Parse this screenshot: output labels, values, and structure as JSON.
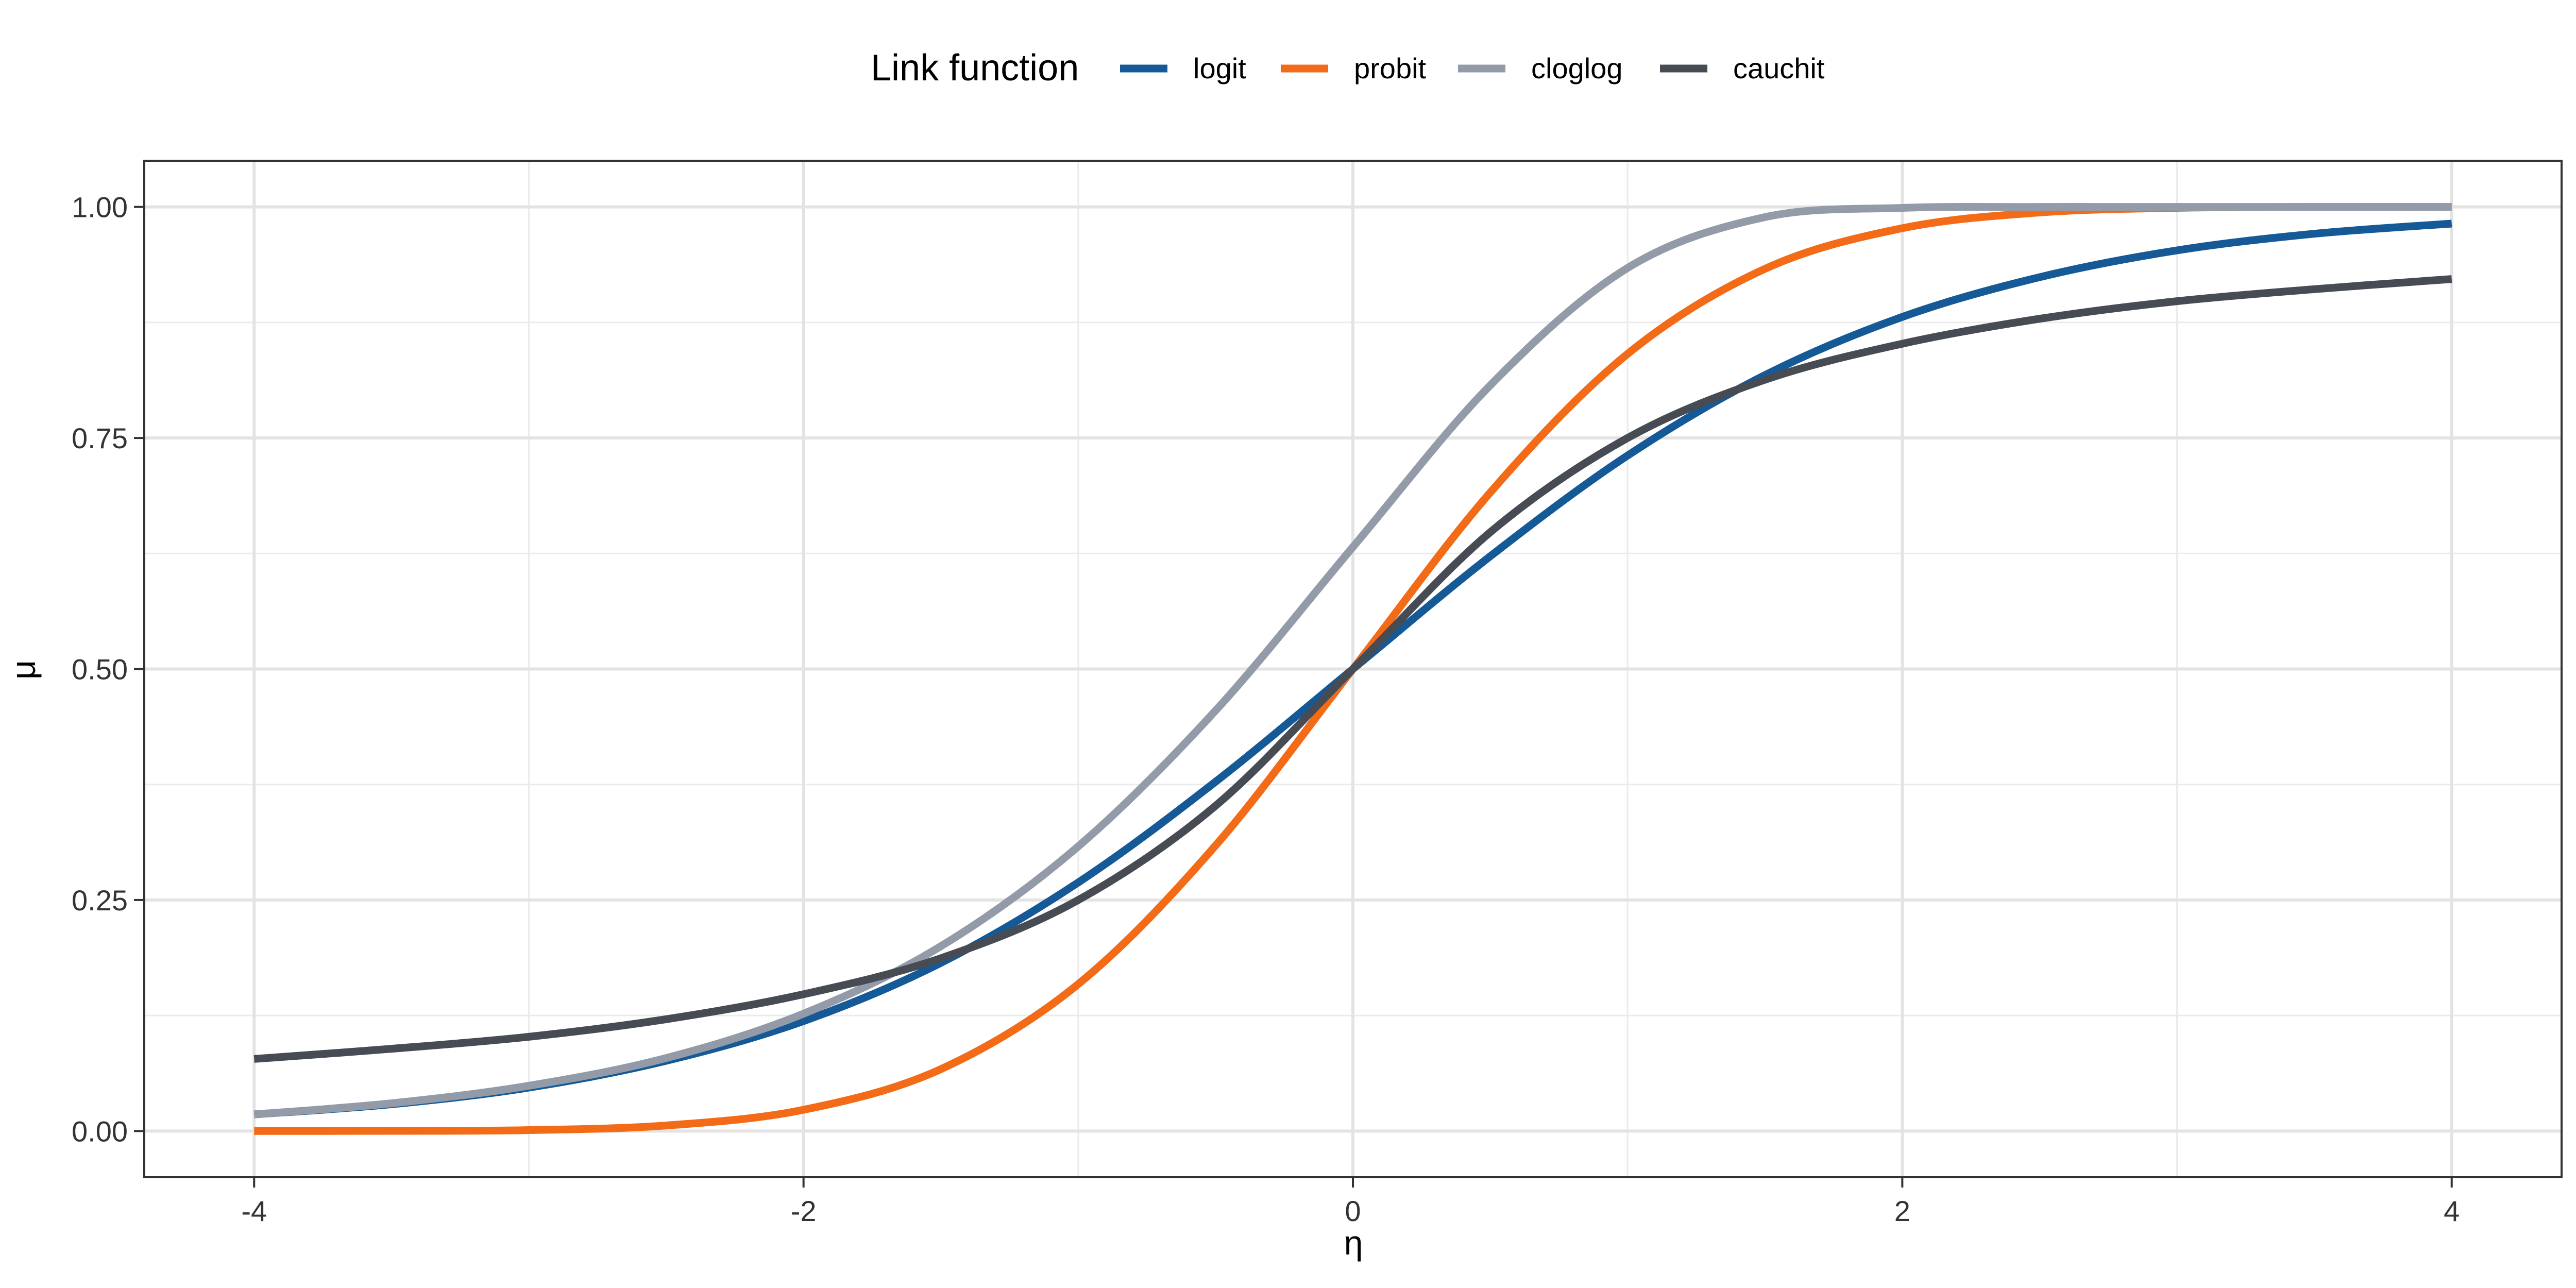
{
  "chart_data": {
    "type": "line",
    "title": "",
    "xlabel": "η",
    "ylabel": "μ",
    "xlim": [
      -4.4,
      4.4
    ],
    "ylim": [
      -0.05,
      1.05
    ],
    "x_ticks": [
      -4,
      -2,
      0,
      2,
      4
    ],
    "x_tick_labels": [
      "-4",
      "-2",
      "0",
      "2",
      "4"
    ],
    "y_ticks": [
      0,
      0.25,
      0.5,
      0.75,
      1
    ],
    "y_tick_labels": [
      "0.00",
      "0.25",
      "0.50",
      "0.75",
      "1.00"
    ],
    "grid": true,
    "legend": {
      "title": "Link function",
      "placement": "top-center",
      "entries": [
        "logit",
        "probit",
        "cloglog",
        "cauchit"
      ]
    },
    "x": [
      -4,
      -3.5,
      -3,
      -2.5,
      -2,
      -1.5,
      -1,
      -0.5,
      0,
      0.5,
      1,
      1.5,
      2,
      2.5,
      3,
      3.5,
      4
    ],
    "series": [
      {
        "name": "logit",
        "color": "#155a96",
        "values": [
          0.018,
          0.029,
          0.047,
          0.076,
          0.119,
          0.182,
          0.269,
          0.378,
          0.5,
          0.622,
          0.731,
          0.818,
          0.881,
          0.924,
          0.953,
          0.971,
          0.982
        ]
      },
      {
        "name": "probit",
        "color": "#f36b16",
        "values": [
          0.0,
          0.0002,
          0.001,
          0.006,
          0.023,
          0.067,
          0.159,
          0.309,
          0.5,
          0.691,
          0.841,
          0.933,
          0.977,
          0.994,
          0.999,
          1.0,
          1.0
        ]
      },
      {
        "name": "cloglog",
        "color": "#939ba9",
        "values": [
          0.018,
          0.03,
          0.049,
          0.079,
          0.127,
          0.2,
          0.308,
          0.455,
          0.632,
          0.807,
          0.934,
          0.989,
          0.999,
          1.0,
          1.0,
          1.0,
          1.0
        ]
      },
      {
        "name": "cauchit",
        "color": "#474b54",
        "values": [
          0.078,
          0.089,
          0.102,
          0.121,
          0.148,
          0.187,
          0.25,
          0.352,
          0.5,
          0.648,
          0.75,
          0.813,
          0.852,
          0.879,
          0.898,
          0.911,
          0.922
        ]
      }
    ]
  }
}
